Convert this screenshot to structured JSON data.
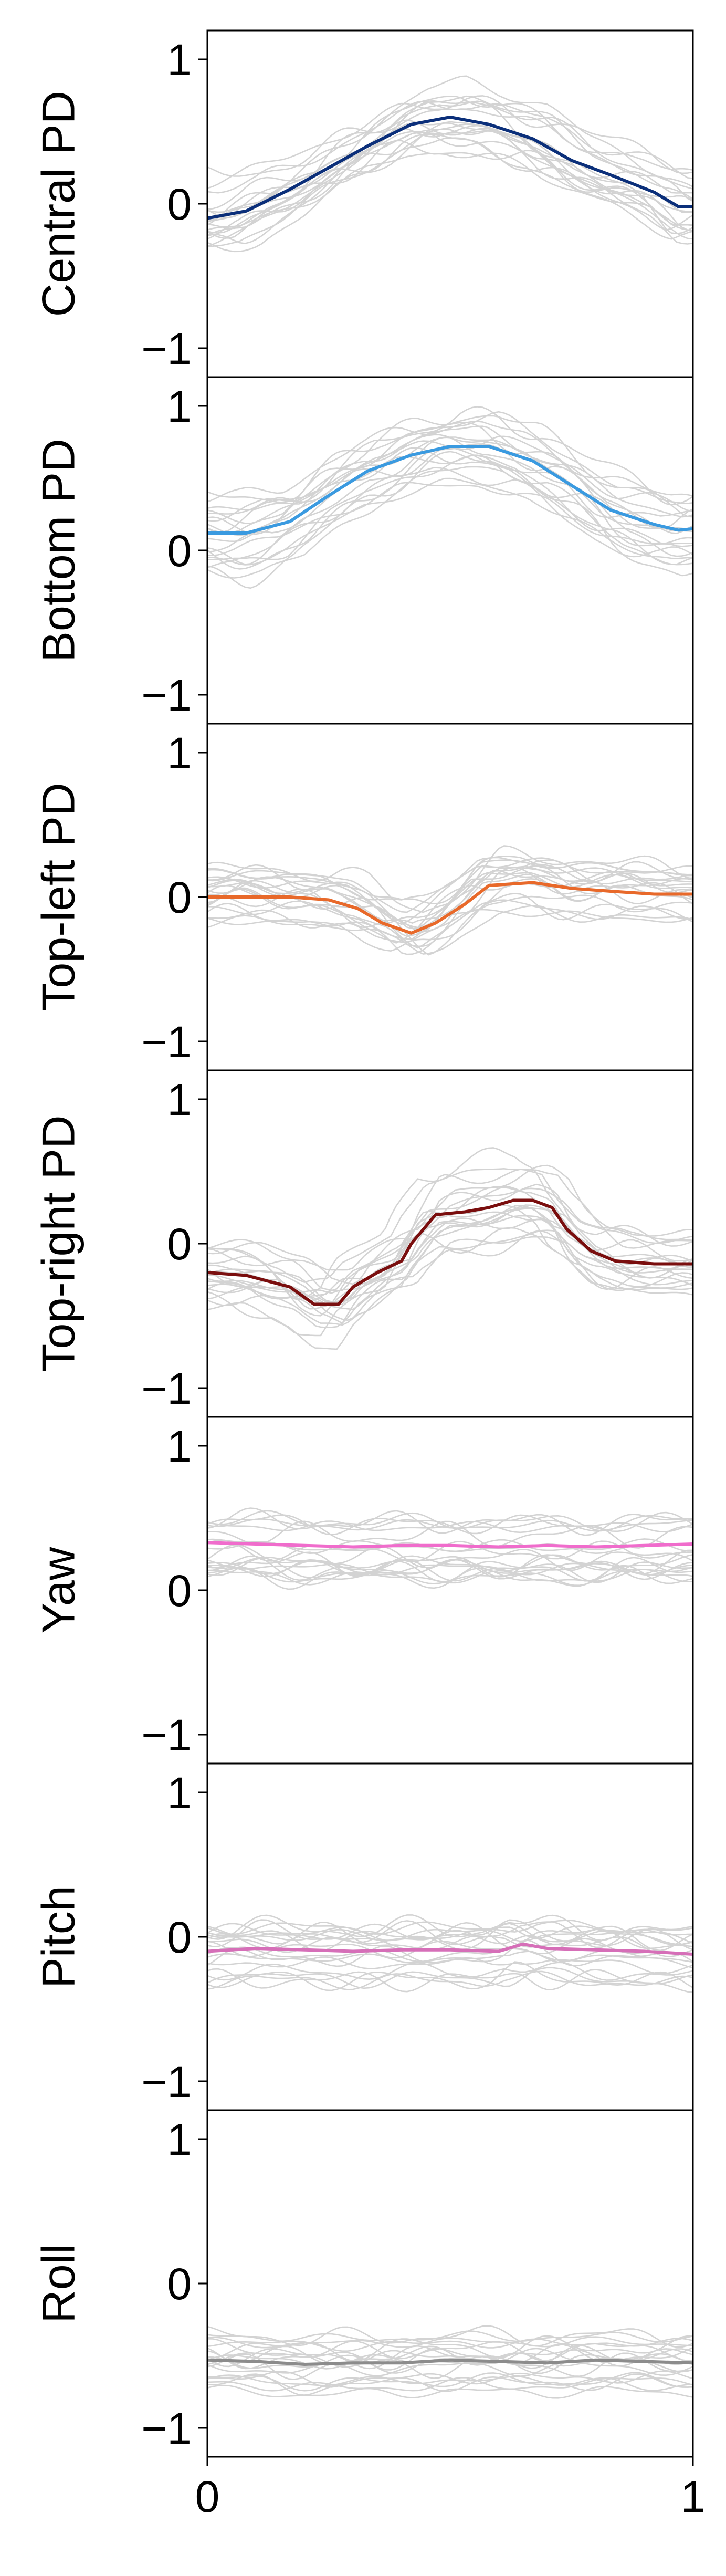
{
  "chart_data": {
    "type": "line",
    "layout": "7 vertically stacked panels sharing one x axis",
    "xlim": [
      0,
      1
    ],
    "ylim": [
      -1.2,
      1.2
    ],
    "x_ticks": [
      0,
      1
    ],
    "x_tick_labels": [
      "0",
      "1"
    ],
    "y_ticks": [
      -1,
      0,
      1
    ],
    "y_tick_labels": [
      "−1",
      "0",
      "1"
    ],
    "grid": false,
    "legend": "none",
    "background_trace_color": "#d3d3d3",
    "background_trace_count": 20,
    "panels": [
      {
        "ylabel": "Central PD",
        "mean_color": "#0b2f7a",
        "x": [
          0,
          0.08,
          0.17,
          0.25,
          0.33,
          0.42,
          0.5,
          0.58,
          0.67,
          0.75,
          0.83,
          0.92,
          0.97,
          1.0
        ],
        "mean": [
          -0.1,
          -0.05,
          0.1,
          0.25,
          0.4,
          0.55,
          0.6,
          0.55,
          0.45,
          0.3,
          0.2,
          0.08,
          -0.02,
          -0.02
        ]
      },
      {
        "ylabel": "Bottom PD",
        "mean_color": "#3a9ae0",
        "x": [
          0,
          0.08,
          0.17,
          0.25,
          0.33,
          0.42,
          0.5,
          0.58,
          0.67,
          0.75,
          0.83,
          0.92,
          0.97,
          1.0
        ],
        "mean": [
          0.12,
          0.12,
          0.2,
          0.38,
          0.55,
          0.66,
          0.72,
          0.72,
          0.62,
          0.45,
          0.28,
          0.18,
          0.14,
          0.15
        ]
      },
      {
        "ylabel": "Top-left PD",
        "mean_color": "#e8692a",
        "x": [
          0,
          0.08,
          0.17,
          0.25,
          0.31,
          0.36,
          0.42,
          0.47,
          0.53,
          0.58,
          0.67,
          0.75,
          0.83,
          0.92,
          1.0
        ],
        "mean": [
          0.0,
          0.0,
          0.0,
          -0.02,
          -0.08,
          -0.18,
          -0.25,
          -0.18,
          -0.05,
          0.08,
          0.1,
          0.06,
          0.04,
          0.02,
          0.02
        ]
      },
      {
        "ylabel": "Top-right PD",
        "mean_color": "#7a0e0e",
        "x": [
          0,
          0.08,
          0.17,
          0.22,
          0.27,
          0.3,
          0.35,
          0.4,
          0.42,
          0.47,
          0.53,
          0.58,
          0.63,
          0.67,
          0.71,
          0.74,
          0.79,
          0.84,
          0.92,
          1.0
        ],
        "mean": [
          -0.2,
          -0.22,
          -0.3,
          -0.42,
          -0.42,
          -0.3,
          -0.2,
          -0.12,
          0.0,
          0.2,
          0.22,
          0.25,
          0.3,
          0.3,
          0.25,
          0.1,
          -0.05,
          -0.12,
          -0.14,
          -0.14
        ]
      },
      {
        "ylabel": "Yaw",
        "mean_color": "#f06ccc",
        "x": [
          0,
          0.1,
          0.2,
          0.3,
          0.4,
          0.5,
          0.6,
          0.7,
          0.8,
          0.9,
          1.0
        ],
        "mean": [
          0.33,
          0.32,
          0.31,
          0.3,
          0.31,
          0.31,
          0.3,
          0.31,
          0.3,
          0.31,
          0.32
        ]
      },
      {
        "ylabel": "Pitch",
        "mean_color": "#d66fb8",
        "x": [
          0,
          0.1,
          0.2,
          0.3,
          0.4,
          0.5,
          0.6,
          0.65,
          0.7,
          0.8,
          0.9,
          1.0
        ],
        "mean": [
          -0.1,
          -0.08,
          -0.09,
          -0.1,
          -0.09,
          -0.09,
          -0.1,
          -0.05,
          -0.08,
          -0.09,
          -0.1,
          -0.12
        ]
      },
      {
        "ylabel": "Roll",
        "mean_color": "#8c8c8c",
        "x": [
          0,
          0.1,
          0.2,
          0.3,
          0.4,
          0.5,
          0.6,
          0.7,
          0.8,
          0.9,
          1.0
        ],
        "mean": [
          -0.53,
          -0.54,
          -0.56,
          -0.55,
          -0.55,
          -0.53,
          -0.54,
          -0.55,
          -0.53,
          -0.54,
          -0.55
        ]
      }
    ]
  }
}
